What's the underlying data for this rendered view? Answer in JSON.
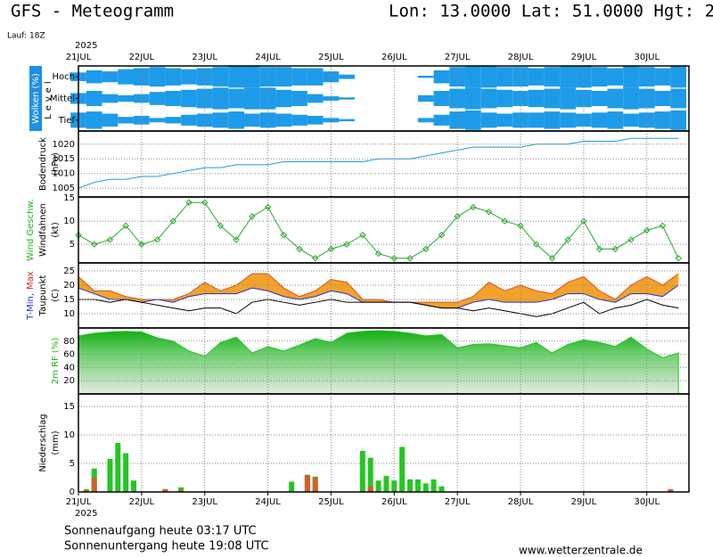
{
  "header": {
    "title": "GFS - Meteogramm",
    "location": "Lon: 13.0000 Lat: 51.0000 Hgt: 2",
    "run": "Lauf: 18Z"
  },
  "footer": {
    "sunrise": "Sonnenaufgang heute 03:17 UTC",
    "sunset": "Sonnenuntergang heute 19:08 UTC",
    "source": "www.wetterzentrale.de"
  },
  "time_axis": {
    "year": "2025",
    "xlim": [
      0,
      232
    ],
    "xticks": [
      {
        "value": 0,
        "label": "21JUL"
      },
      {
        "value": 24,
        "label": "22JUL"
      },
      {
        "value": 48,
        "label": "23JUL"
      },
      {
        "value": 72,
        "label": "24JUL"
      },
      {
        "value": 96,
        "label": "25JUL"
      },
      {
        "value": 120,
        "label": "26JUL"
      },
      {
        "value": 144,
        "label": "27JUL"
      },
      {
        "value": 168,
        "label": "28JUL"
      },
      {
        "value": 192,
        "label": "29JUL"
      },
      {
        "value": 216,
        "label": "30JUL"
      }
    ],
    "x": [
      0,
      6,
      12,
      18,
      24,
      30,
      36,
      42,
      48,
      54,
      60,
      66,
      72,
      78,
      84,
      90,
      96,
      102,
      108,
      114,
      120,
      126,
      132,
      138,
      144,
      150,
      156,
      162,
      168,
      174,
      180,
      186,
      192,
      198,
      204,
      210,
      216,
      222,
      228
    ]
  },
  "chart_data": [
    {
      "type": "cloud_levels",
      "ylabel": [
        [
          {
            "text": "Wolken (%)",
            "color": "#ffffff"
          }
        ],
        [
          {
            "text": "Level",
            "color": "#000000"
          }
        ]
      ],
      "ylabel_bg": "#1e8fe6",
      "series": [
        {
          "name": "Hoch",
          "color": "#1e9be8",
          "values": [
            40,
            60,
            50,
            70,
            80,
            90,
            80,
            70,
            80,
            90,
            100,
            100,
            90,
            90,
            80,
            80,
            50,
            20,
            0,
            0,
            0,
            0,
            10,
            60,
            90,
            100,
            100,
            90,
            90,
            80,
            90,
            100,
            100,
            90,
            80,
            100,
            90,
            80,
            100
          ]
        },
        {
          "name": "Mittel",
          "color": "#1e9be8",
          "values": [
            50,
            70,
            40,
            30,
            40,
            60,
            70,
            80,
            90,
            100,
            90,
            100,
            100,
            80,
            70,
            40,
            20,
            10,
            0,
            0,
            0,
            0,
            30,
            70,
            90,
            100,
            90,
            80,
            70,
            80,
            90,
            100,
            80,
            70,
            90,
            100,
            90,
            70,
            90
          ]
        },
        {
          "name": "Tief",
          "color": "#1e9be8",
          "values": [
            70,
            80,
            60,
            30,
            40,
            20,
            30,
            50,
            60,
            70,
            80,
            60,
            70,
            60,
            50,
            40,
            20,
            10,
            0,
            0,
            0,
            0,
            20,
            50,
            80,
            90,
            70,
            60,
            70,
            70,
            80,
            70,
            60,
            70,
            80,
            60,
            70,
            80,
            90
          ]
        }
      ]
    },
    {
      "type": "line",
      "ylabel": [
        [
          {
            "text": "Bodendruck",
            "color": "#000000"
          }
        ],
        [
          {
            "text": "(hPa)",
            "color": "#000000"
          }
        ]
      ],
      "ylim": [
        1002,
        1024.5
      ],
      "yticks": [
        1005,
        1010,
        1015,
        1020
      ],
      "series": [
        {
          "color": "#1e9be8",
          "values": [
            1005,
            1007,
            1008,
            1008,
            1009,
            1009,
            1010,
            1011,
            1012,
            1012,
            1013,
            1013,
            1013,
            1014,
            1014,
            1014,
            1014,
            1014,
            1014,
            1015,
            1015,
            1015,
            1016,
            1017,
            1018,
            1019,
            1019,
            1019,
            1019,
            1020,
            1020,
            1020,
            1021,
            1021,
            1021,
            1022,
            1022,
            1022,
            1022
          ]
        }
      ]
    },
    {
      "type": "line",
      "ylabel": [
        [
          {
            "text": "Wind Geschw.",
            "color": "#1fb21f"
          }
        ],
        [
          {
            "text": "Windfahnen",
            "color": "#000000"
          }
        ],
        [
          {
            "text": "(kt)",
            "color": "#000000"
          }
        ]
      ],
      "ylim": [
        1,
        15.2
      ],
      "yticks": [
        5,
        10,
        15
      ],
      "series": [
        {
          "color": "#2aa82a",
          "marker": true,
          "values": [
            7,
            5,
            6,
            9,
            5,
            6,
            10,
            14,
            14,
            9,
            6,
            11,
            13,
            7,
            4,
            2,
            4,
            5,
            7,
            3,
            2,
            2,
            4,
            7,
            11,
            13,
            12,
            10,
            9,
            5,
            2,
            6,
            10,
            4,
            4,
            6,
            8,
            9,
            2
          ]
        }
      ]
    },
    {
      "type": "line",
      "ylabel": [
        [
          {
            "text": "T-Min,",
            "color": "#1f2fd0"
          },
          {
            "text": "Max",
            "color": "#e02020"
          }
        ],
        [
          {
            "text": "Taupunkt",
            "color": "#000000"
          }
        ],
        [
          {
            "text": "(C)",
            "color": "#000000"
          }
        ]
      ],
      "ylim": [
        5,
        27.8
      ],
      "yticks": [
        10,
        15,
        20,
        25
      ],
      "fill_between": {
        "series": [
          0,
          1
        ],
        "color": "#f2a22a"
      },
      "series": [
        {
          "color": "#e0501a",
          "values": [
            23,
            18,
            18,
            16,
            15,
            15,
            15,
            17,
            21,
            18,
            20,
            24,
            24,
            19,
            16,
            18,
            22,
            21,
            15,
            15,
            14,
            14,
            14,
            14,
            14,
            16,
            21,
            18,
            20,
            18,
            17,
            21,
            23,
            18,
            15,
            20,
            23,
            20,
            24
          ]
        },
        {
          "color": "#1f2fd0",
          "values": [
            19,
            17,
            15,
            15,
            14,
            15,
            14,
            16,
            17,
            17,
            17,
            19,
            18,
            16,
            15,
            16,
            18,
            17,
            14,
            14,
            14,
            14,
            13,
            12,
            12,
            14,
            15,
            14,
            14,
            14,
            15,
            17,
            17,
            15,
            14,
            17,
            17,
            16,
            20
          ]
        },
        {
          "color": "#000000",
          "values": [
            15,
            15,
            14,
            15,
            14,
            13,
            12,
            11,
            12,
            12,
            10,
            14,
            15,
            14,
            13,
            14,
            15,
            14,
            14,
            14,
            14,
            14,
            13,
            12,
            12,
            11,
            12,
            11,
            10,
            9,
            10,
            12,
            14,
            10,
            12,
            13,
            15,
            13,
            12
          ]
        }
      ]
    },
    {
      "type": "area",
      "ylabel": [
        [
          {
            "text": "2m RF (%)",
            "color": "#1fb21f"
          }
        ]
      ],
      "ylim": [
        0,
        100
      ],
      "yticks": [
        20,
        40,
        60,
        80
      ],
      "series": [
        {
          "color": "#1ec81e",
          "values": [
            88,
            92,
            94,
            95,
            94,
            85,
            80,
            65,
            57,
            78,
            86,
            62,
            72,
            65,
            74,
            84,
            78,
            92,
            95,
            96,
            95,
            92,
            88,
            90,
            70,
            75,
            76,
            73,
            70,
            78,
            62,
            75,
            82,
            78,
            72,
            86,
            68,
            55,
            62
          ]
        }
      ]
    },
    {
      "type": "bar",
      "ylabel": [
        [
          {
            "text": "Niederschlag",
            "color": "#000000"
          }
        ],
        [
          {
            "text": "(mm)",
            "color": "#000000"
          }
        ]
      ],
      "ylim": [
        0,
        17.2
      ],
      "yticks": [
        0,
        5,
        10,
        15
      ],
      "x": [
        3,
        6,
        12,
        15,
        18,
        21,
        33,
        39,
        81,
        87,
        90,
        108,
        111,
        114,
        117,
        120,
        123,
        126,
        129,
        132,
        135,
        138,
        225
      ],
      "series": [
        {
          "color": "#22c822",
          "values": [
            0.5,
            4.1,
            5.8,
            8.6,
            6.8,
            2,
            0.5,
            0.8,
            1.8,
            3,
            2.7,
            7.2,
            6,
            2,
            2.8,
            2,
            7.9,
            2.2,
            2.2,
            1.5,
            2.2,
            1,
            0.3
          ]
        },
        {
          "color": "#d0602a",
          "values": [
            0.3,
            2.5,
            0,
            0,
            0,
            0,
            0.5,
            0.3,
            0,
            3,
            2.5,
            0,
            1,
            0,
            0,
            0,
            0,
            0,
            0,
            0,
            0,
            0,
            0.5
          ]
        }
      ]
    }
  ]
}
